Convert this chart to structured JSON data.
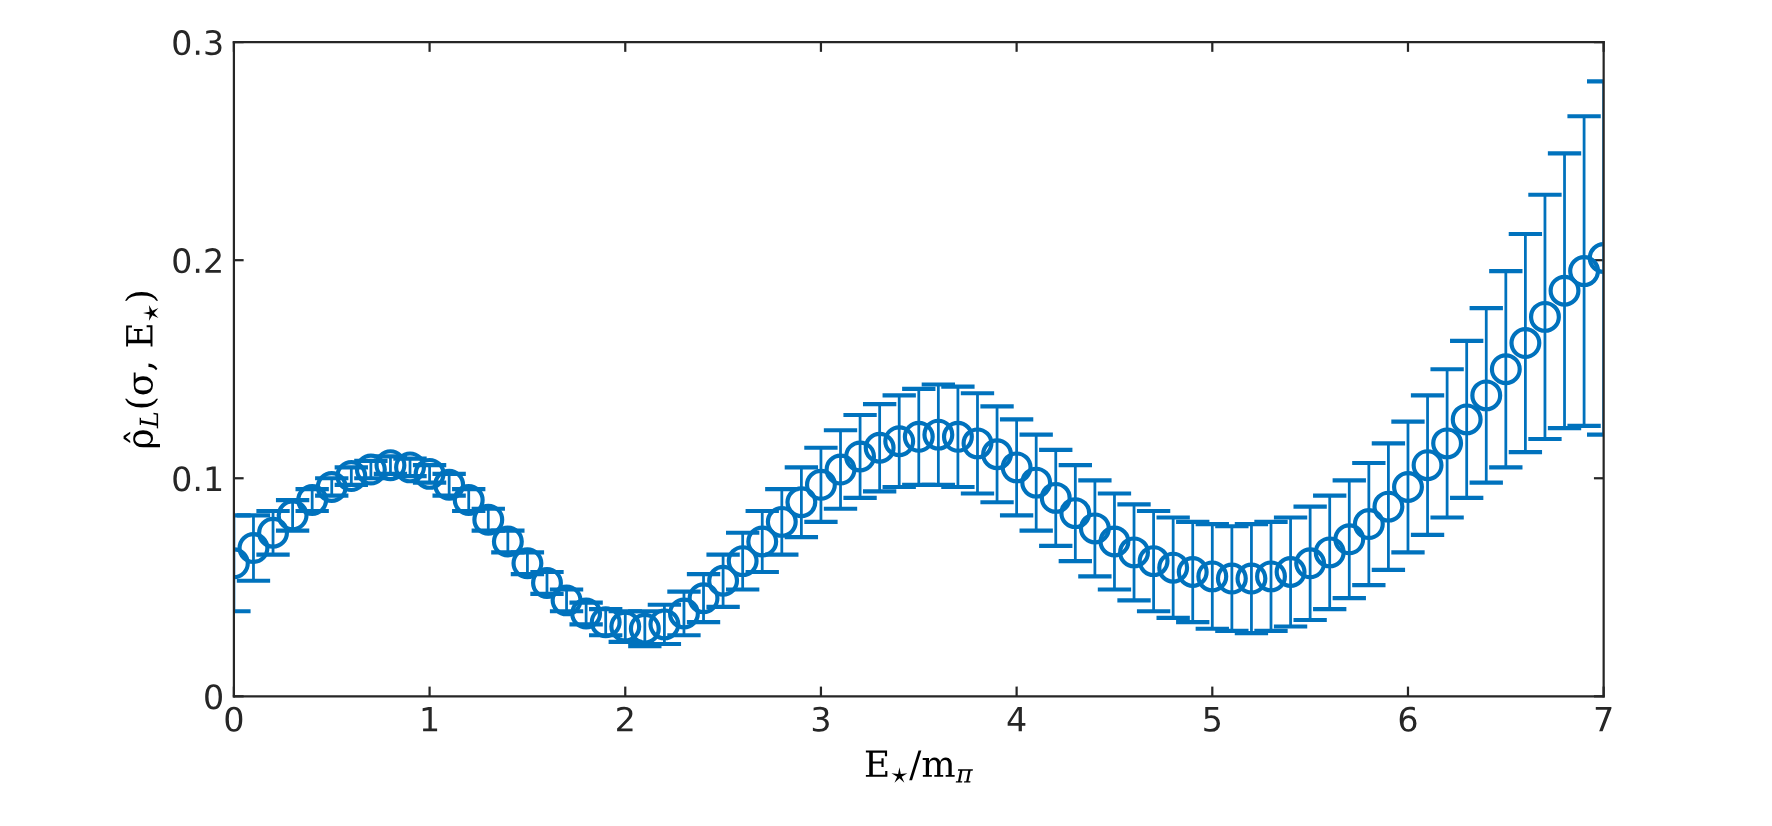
{
  "chart_data": {
    "type": "scatter",
    "xlabel": "E$_{⋆}$/m$_{π}$",
    "ylabel": "ρ̂$_{L}$(σ, E$_{⋆}$)",
    "x": [
      0,
      0.1,
      0.2,
      0.3,
      0.4,
      0.5,
      0.6,
      0.7,
      0.8,
      0.9,
      1,
      1.1,
      1.2,
      1.3,
      1.4,
      1.5,
      1.6,
      1.7,
      1.8,
      1.9,
      2,
      2.1,
      2.2,
      2.3,
      2.4,
      2.5,
      2.6,
      2.7,
      2.8,
      2.9,
      3,
      3.1,
      3.2,
      3.3,
      3.4,
      3.5,
      3.6,
      3.7,
      3.8,
      3.9,
      4,
      4.1,
      4.2,
      4.3,
      4.4,
      4.5,
      4.6,
      4.7,
      4.8,
      4.9,
      5,
      5.1,
      5.2,
      5.3,
      5.4,
      5.5,
      5.6,
      5.7,
      5.8,
      5.9,
      6,
      6.1,
      6.2,
      6.3,
      6.4,
      6.5,
      6.6,
      6.7,
      6.8,
      6.9,
      7
    ],
    "series": [
      {
        "color": "#0072bd",
        "values": [
          0.061,
          0.068,
          0.075,
          0.083,
          0.09,
          0.096,
          0.101,
          0.104,
          0.106,
          0.105,
          0.102,
          0.097,
          0.09,
          0.081,
          0.071,
          0.061,
          0.052,
          0.044,
          0.038,
          0.034,
          0.032,
          0.031,
          0.033,
          0.038,
          0.045,
          0.053,
          0.062,
          0.071,
          0.08,
          0.089,
          0.097,
          0.104,
          0.11,
          0.114,
          0.117,
          0.119,
          0.12,
          0.119,
          0.116,
          0.111,
          0.105,
          0.098,
          0.091,
          0.084,
          0.077,
          0.071,
          0.066,
          0.062,
          0.059,
          0.057,
          0.055,
          0.054,
          0.054,
          0.055,
          0.057,
          0.061,
          0.066,
          0.072,
          0.079,
          0.087,
          0.096,
          0.106,
          0.116,
          0.127,
          0.138,
          0.15,
          0.162,
          0.174,
          0.186,
          0.195,
          0.201
        ],
        "errors": [
          0.022,
          0.015,
          0.01,
          0.007,
          0.005,
          0.004,
          0.004,
          0.004,
          0.004,
          0.004,
          0.004,
          0.005,
          0.005,
          0.005,
          0.005,
          0.005,
          0.005,
          0.005,
          0.005,
          0.006,
          0.007,
          0.008,
          0.009,
          0.01,
          0.011,
          0.012,
          0.013,
          0.014,
          0.015,
          0.016,
          0.017,
          0.018,
          0.019,
          0.02,
          0.021,
          0.022,
          0.023,
          0.023,
          0.023,
          0.022,
          0.022,
          0.022,
          0.022,
          0.022,
          0.022,
          0.022,
          0.022,
          0.023,
          0.023,
          0.023,
          0.024,
          0.024,
          0.025,
          0.025,
          0.025,
          0.026,
          0.026,
          0.027,
          0.028,
          0.029,
          0.03,
          0.032,
          0.034,
          0.036,
          0.04,
          0.045,
          0.05,
          0.056,
          0.063,
          0.071,
          0.081
        ]
      }
    ],
    "xlim": [
      0,
      7
    ],
    "xticks": [
      0,
      1,
      2,
      3,
      4,
      5,
      6,
      7
    ],
    "ylim": [
      0,
      0.3
    ],
    "yticks": [
      0,
      0.1,
      0.2,
      0.3
    ],
    "marker": "circle",
    "grid": false,
    "legend": false
  }
}
